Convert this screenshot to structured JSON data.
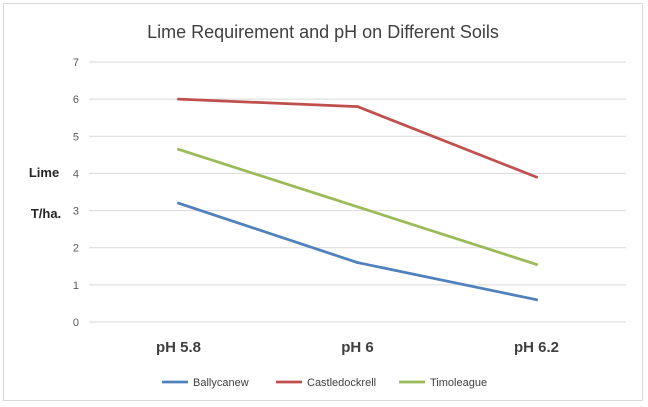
{
  "chart_data": {
    "type": "line",
    "title": "Lime Requirement and pH on Different Soils",
    "ylabel_lines": [
      "Lime",
      "T/ha."
    ],
    "categories": [
      "pH 5.8",
      "pH 6",
      "pH 6.2"
    ],
    "ylim": [
      0,
      7
    ],
    "yticks": [
      0,
      1,
      2,
      3,
      4,
      5,
      6,
      7
    ],
    "grid": true,
    "legend": "bottom",
    "series": [
      {
        "name": "Ballycanew",
        "color": "#4f81bd",
        "values": [
          3.2,
          1.6,
          0.6
        ]
      },
      {
        "name": "Castledockrell",
        "color": "#c0504d",
        "values": [
          6.0,
          5.8,
          3.9
        ]
      },
      {
        "name": "Timoleague",
        "color": "#9bbb59",
        "values": [
          4.65,
          3.1,
          1.55
        ]
      }
    ]
  }
}
